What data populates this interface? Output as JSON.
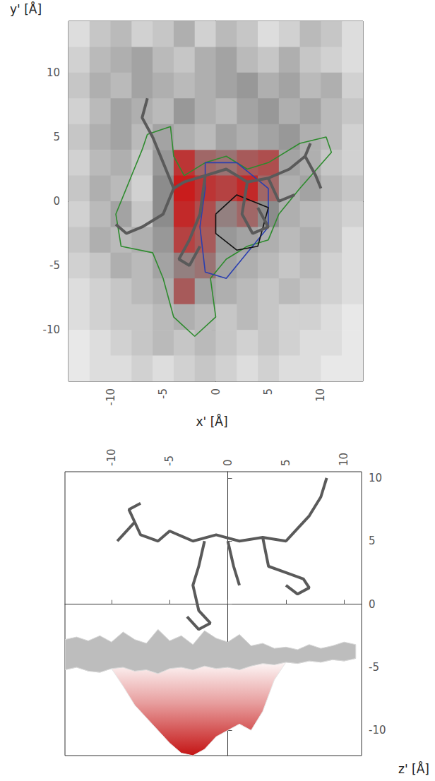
{
  "chart_data": [
    {
      "type": "heatmap",
      "x_label": "x' [Å]",
      "y_label": "y' [Å]",
      "xlim": [
        -14,
        14
      ],
      "ylim": [
        -14,
        14
      ],
      "xticks": [
        -10,
        -5,
        0,
        5,
        10
      ],
      "yticks": [
        -10,
        -5,
        0,
        5,
        10
      ],
      "cell_x": [
        -13,
        -11,
        -9,
        -7,
        -5,
        -3,
        -1,
        1,
        3,
        5,
        7,
        9,
        11,
        13
      ],
      "cell_y": [
        13,
        11,
        9,
        7,
        5,
        3,
        1,
        -1,
        -3,
        -5,
        -7,
        -9,
        -11,
        -13
      ],
      "cells": [
        [
          0.3,
          0.5,
          0.6,
          0.4,
          0.5,
          0.7,
          0.4,
          0.6,
          0.5,
          0.3,
          0.4,
          0.6,
          0.5,
          0.3
        ],
        [
          0.4,
          0.6,
          0.7,
          0.8,
          0.6,
          0.5,
          0.7,
          0.8,
          0.6,
          0.5,
          0.7,
          0.5,
          0.4,
          0.3
        ],
        [
          0.5,
          0.7,
          0.6,
          0.8,
          0.7,
          0.6,
          0.7,
          0.8,
          0.9,
          0.7,
          0.8,
          0.6,
          0.7,
          0.4
        ],
        [
          0.4,
          0.6,
          0.8,
          0.7,
          0.6,
          0.9,
          0.7,
          0.6,
          0.8,
          0.9,
          0.7,
          0.8,
          0.6,
          0.5
        ],
        [
          0.5,
          0.7,
          0.8,
          0.6,
          0.8,
          0.7,
          0.6,
          0.8,
          0.7,
          0.8,
          0.9,
          0.7,
          0.6,
          0.4
        ],
        [
          0.4,
          0.6,
          0.7,
          0.5,
          0.9,
          1.7,
          1.3,
          1.2,
          1.4,
          1.5,
          0.8,
          0.7,
          0.5,
          0.4
        ],
        [
          0.5,
          0.7,
          0.6,
          0.4,
          1.0,
          1.9,
          1.7,
          1.6,
          1.8,
          1.3,
          0.7,
          0.8,
          0.6,
          0.5
        ],
        [
          0.4,
          0.6,
          0.8,
          0.5,
          1.0,
          1.8,
          1.5,
          1.1,
          1.3,
          1.0,
          0.7,
          0.6,
          0.5,
          0.4
        ],
        [
          0.5,
          0.7,
          0.6,
          0.7,
          0.9,
          1.6,
          1.4,
          0.9,
          0.8,
          0.7,
          0.6,
          0.7,
          0.5,
          0.3
        ],
        [
          0.4,
          0.5,
          0.7,
          0.6,
          0.8,
          1.1,
          1.2,
          0.8,
          0.7,
          0.6,
          0.5,
          0.6,
          0.4,
          0.3
        ],
        [
          0.3,
          0.4,
          0.5,
          0.6,
          0.7,
          1.4,
          0.8,
          0.7,
          0.6,
          0.5,
          0.6,
          0.5,
          0.4,
          0.3
        ],
        [
          0.3,
          0.4,
          0.5,
          0.5,
          0.6,
          0.7,
          0.6,
          0.5,
          0.6,
          0.5,
          0.4,
          0.4,
          0.3,
          0.2
        ],
        [
          0.2,
          0.3,
          0.4,
          0.5,
          0.6,
          0.5,
          0.6,
          0.5,
          0.4,
          0.5,
          0.4,
          0.3,
          0.3,
          0.2
        ],
        [
          0.2,
          0.3,
          0.3,
          0.4,
          0.3,
          0.4,
          0.5,
          0.4,
          0.3,
          0.4,
          0.3,
          0.3,
          0.2,
          0.2
        ]
      ],
      "color_range": [
        0,
        2
      ],
      "series": [
        {
          "type": "line",
          "color": "#2e8b2e",
          "x": [
            -6.5,
            -4.3,
            -4,
            -3,
            -1,
            1,
            3,
            5,
            8,
            10.5,
            11,
            8,
            6,
            5,
            3,
            1,
            -0.5,
            0,
            -2,
            -4,
            -5,
            -6,
            -9,
            -9.5,
            -8,
            -7,
            -6.5
          ],
          "values": [
            5.2,
            5.8,
            3.5,
            2,
            3,
            3.5,
            2.5,
            3,
            4.5,
            5,
            3.8,
            1,
            -1,
            -3,
            -3.5,
            -4.5,
            -6,
            -9,
            -10.5,
            -9,
            -6,
            -4,
            -3.5,
            -1,
            2,
            4,
            5.2
          ]
        },
        {
          "type": "line",
          "color": "#2a3fb0",
          "x": [
            -1,
            2,
            5,
            5,
            3,
            1,
            -1,
            -1.5,
            -1,
            -1
          ],
          "values": [
            3,
            3,
            1,
            -2,
            -4,
            -6,
            -5.5,
            -2,
            1,
            3
          ]
        },
        {
          "type": "line",
          "color": "#111111",
          "x": [
            0,
            2,
            5,
            4,
            2,
            0,
            0
          ],
          "values": [
            -1,
            0.5,
            -0.5,
            -3.5,
            -3.8,
            -2.5,
            -1
          ]
        },
        {
          "type": "line",
          "color": "#5a5a5a",
          "x": [
            -6,
            -5,
            -4.5,
            -4,
            -3,
            -1,
            1,
            3,
            5,
            7,
            8.5,
            9,
            null,
            -4,
            -5,
            -7,
            -8.5,
            -9.5,
            null,
            -6,
            -7,
            -6.5,
            null,
            -1,
            -1.5,
            -2.5,
            -3.5,
            -2.5,
            -1.5,
            null,
            3,
            2.5,
            3.5,
            5,
            4,
            null,
            5,
            6,
            7.5,
            null,
            8.5,
            9.5,
            10
          ],
          "values": [
            5,
            3,
            2,
            1,
            1.5,
            2,
            2.5,
            1.5,
            1.8,
            2.5,
            3.5,
            4.5,
            null,
            1,
            -1,
            -2,
            -2.5,
            -1.8,
            null,
            5,
            6.5,
            8,
            null,
            2,
            -1,
            -3,
            -4.5,
            -5,
            -3.5,
            null,
            1.5,
            -1,
            -2.5,
            -2,
            -0.5,
            null,
            1.8,
            0,
            0.5,
            null,
            3.5,
            2,
            1
          ]
        }
      ]
    },
    {
      "type": "surface",
      "y_label": "z' [Å]",
      "xlim": [
        -14,
        11.5
      ],
      "ylim": [
        -12,
        10.5
      ],
      "xticks": [
        -10,
        -5,
        0,
        5,
        10
      ],
      "yticks": [
        -10,
        -5,
        0,
        5,
        10
      ],
      "x": [
        -14,
        -13,
        -12,
        -11,
        -10,
        -9,
        -8,
        -7,
        -6,
        -5,
        -4,
        -3,
        -2,
        -1,
        0,
        1,
        2,
        3,
        4,
        5,
        6,
        7,
        8,
        9,
        10,
        11
      ],
      "surface_top": [
        -2.8,
        -2.6,
        -2.9,
        -2.5,
        -3.0,
        -2.2,
        -2.8,
        -3.1,
        -2.0,
        -2.9,
        -2.5,
        -3.2,
        -2.1,
        -2.7,
        -3.0,
        -2.4,
        -3.3,
        -3.1,
        -3.5,
        -3.4,
        -3.6,
        -3.2,
        -3.5,
        -3.3,
        -3.0,
        -3.2
      ],
      "surface_bottom": [
        -5.2,
        -5.0,
        -5.3,
        -5.4,
        -5.1,
        -5.0,
        -5.3,
        -5.2,
        -5.5,
        -5.1,
        -5.0,
        -5.2,
        -4.9,
        -5.1,
        -5.0,
        -5.2,
        -4.9,
        -4.7,
        -4.8,
        -4.6,
        -4.7,
        -4.5,
        -4.6,
        -4.4,
        -4.5,
        -4.3
      ],
      "well_bottom": [
        -5.2,
        -5.0,
        -5.3,
        -5.4,
        -5.1,
        -6.5,
        -8,
        -9,
        -10,
        -11,
        -11.8,
        -12,
        -11.5,
        -10.5,
        -10,
        -9.5,
        -10,
        -8.5,
        -6,
        -4.6,
        -4.7,
        -4.5,
        -4.6,
        -4.4,
        -4.5,
        -4.3
      ],
      "series": [
        {
          "type": "line",
          "color": "#5a5a5a",
          "x": [
            -9.5,
            -8,
            -7.5,
            -6,
            -5,
            -3,
            -1,
            1,
            3,
            5,
            6,
            7,
            8,
            8.5,
            null,
            -2,
            -2.5,
            -3,
            -2.5,
            -1.5,
            -2.5,
            -3.5,
            null,
            0,
            0.5,
            1,
            null,
            3,
            3.5,
            5,
            6.5,
            7,
            6,
            5,
            null,
            -8,
            -8.5,
            -7.5
          ],
          "values": [
            5,
            6.5,
            5.5,
            5,
            5.8,
            5,
            5.5,
            5,
            5.3,
            5,
            6,
            7,
            8.5,
            10,
            null,
            5,
            3,
            1.5,
            -0.5,
            -1.5,
            -2,
            -1,
            null,
            5,
            3,
            1.5,
            null,
            5.3,
            3,
            2.5,
            2,
            1.3,
            0.8,
            1.5,
            null,
            6.5,
            7.5,
            8
          ]
        }
      ]
    }
  ]
}
